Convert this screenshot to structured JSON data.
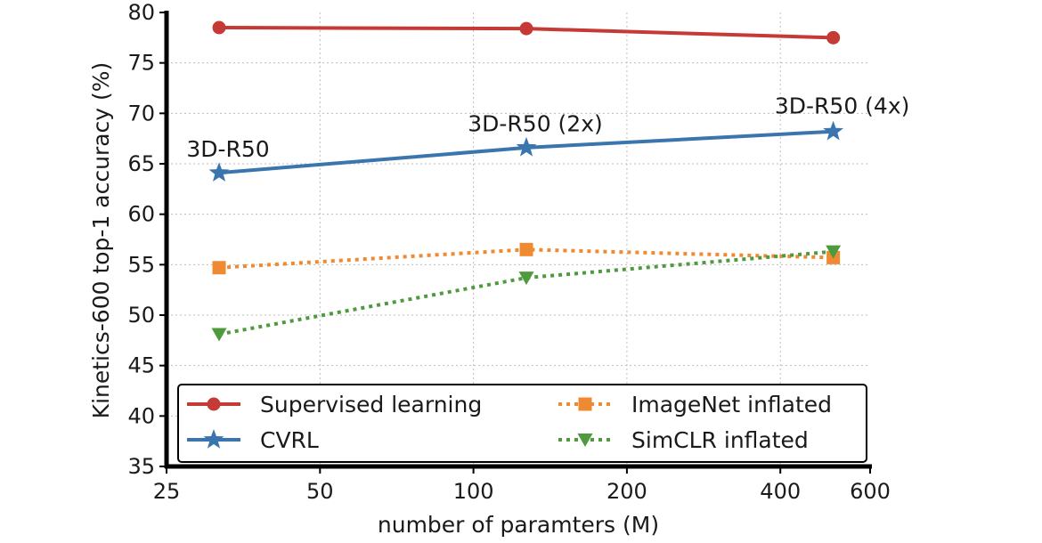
{
  "chart_data": {
    "type": "line",
    "xlabel": "number of paramters (M)",
    "ylabel": "Kinetics-600 top-1 accuracy (%)",
    "xscale": "log",
    "xlim": [
      25,
      600
    ],
    "ylim": [
      35,
      80
    ],
    "xticks": [
      25,
      50,
      100,
      200,
      400,
      600
    ],
    "yticks": [
      35,
      40,
      45,
      50,
      55,
      60,
      65,
      70,
      75,
      80
    ],
    "grid": true,
    "legend": "bottom",
    "x": [
      31.7,
      127,
      508
    ],
    "series": [
      {
        "name": "Supervised learning",
        "values": [
          78.5,
          78.4,
          77.5
        ],
        "color": "#c63a36",
        "marker": "circle",
        "linestyle": "solid"
      },
      {
        "name": "CVRL",
        "values": [
          64.1,
          66.6,
          68.2
        ],
        "color": "#3b75ae",
        "marker": "star",
        "linestyle": "solid"
      },
      {
        "name": "ImageNet inflated",
        "values": [
          54.7,
          56.5,
          55.7
        ],
        "color": "#f08a32",
        "marker": "square",
        "linestyle": "dotted"
      },
      {
        "name": "SimCLR inflated",
        "values": [
          48.1,
          53.7,
          56.3
        ],
        "color": "#4f9a3e",
        "marker": "triangle-down",
        "linestyle": "dotted"
      }
    ],
    "annotations": [
      {
        "text": "3D-R50",
        "x": 31.7,
        "y": 66.5
      },
      {
        "text": "3D-R50 (2x)",
        "x": 127,
        "y": 69.0
      },
      {
        "text": "3D-R50 (4x)",
        "x": 508,
        "y": 70.8
      }
    ]
  }
}
